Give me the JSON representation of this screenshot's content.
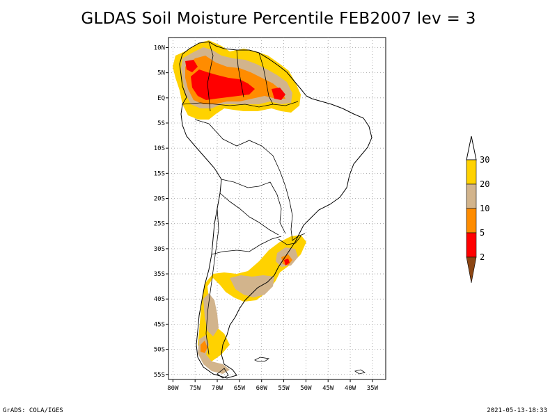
{
  "title": "GLDAS Soil Moisture Percentile FEB2007 lev = 3",
  "footer": {
    "left": "GrADS: COLA/IGES",
    "right": "2021-05-13-18:33"
  },
  "map": {
    "lon_range": [
      -81,
      -32
    ],
    "lat_range": [
      -56,
      12
    ],
    "lat_ticks": [
      "10N",
      "5N",
      "EQ",
      "5S",
      "10S",
      "15S",
      "20S",
      "25S",
      "30S",
      "35S",
      "40S",
      "45S",
      "50S",
      "55S"
    ],
    "lon_ticks": [
      "80W",
      "75W",
      "70W",
      "65W",
      "60W",
      "55W",
      "50W",
      "45W",
      "40W",
      "35W"
    ],
    "grid": true
  },
  "legend": {
    "levels": [
      {
        "label": "30",
        "color": "#FFD200"
      },
      {
        "label": "20",
        "color": "#D2B48C"
      },
      {
        "label": "10",
        "color": "#FF8C00"
      },
      {
        "label": "5",
        "color": "#FF0000"
      },
      {
        "label": "2",
        "color": "#8B4513"
      }
    ],
    "top_color": "#FFFFFF"
  },
  "colors": {
    "dry_30": "#FFD200",
    "dry_20": "#D2B48C",
    "dry_10": "#FF8C00",
    "dry_5": "#FF0000",
    "dry_2": "#8B4513"
  }
}
